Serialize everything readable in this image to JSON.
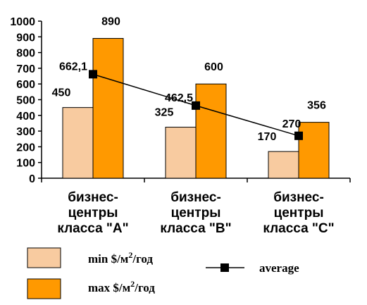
{
  "chart_data": {
    "type": "bar",
    "ylim": [
      0,
      1000
    ],
    "yticks": [
      "0",
      "100",
      "200",
      "300",
      "400",
      "500",
      "600",
      "700",
      "800",
      "900",
      "1000"
    ],
    "categories": [
      [
        "бизнес-",
        "центры",
        "класса \"A\""
      ],
      [
        "бизнес-",
        "центры",
        "класса \"B\""
      ],
      [
        "бизнес-",
        "центры",
        "класса \"C\""
      ]
    ],
    "series": [
      {
        "name": "min $/м²/год",
        "legend_main": "min $/м",
        "legend_sup": "2",
        "legend_tail": "/год",
        "color": "#F8CBA0",
        "values": [
          450,
          325,
          170
        ],
        "labels": [
          "450",
          "325",
          "170"
        ]
      },
      {
        "name": "max $/м²/год",
        "legend_main": "max $/м",
        "legend_sup": "2",
        "legend_tail": "/год",
        "color": "#FF9900",
        "values": [
          890,
          600,
          356
        ],
        "labels": [
          "890",
          "600",
          "356"
        ]
      }
    ],
    "line": {
      "name": "average",
      "color": "#000000",
      "values": [
        662.1,
        462.5,
        270
      ],
      "labels": [
        "662,1",
        "462,5",
        "270"
      ]
    },
    "grid": false,
    "legend_position": "bottom"
  }
}
